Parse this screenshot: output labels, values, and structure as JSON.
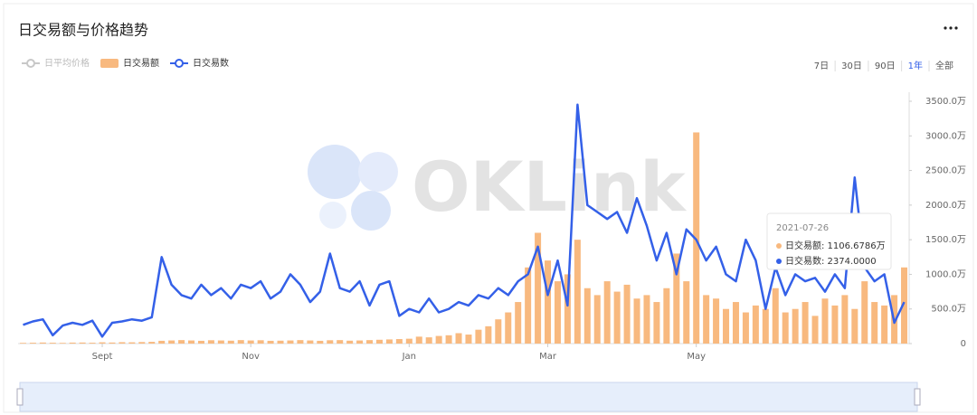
{
  "chart_data": {
    "type": "bar-line",
    "title": "日交易额与价格趋势",
    "watermark": "OKLink",
    "range_buttons": [
      "7日",
      "30日",
      "90日",
      "1年",
      "全部"
    ],
    "active_range": 3,
    "categories": [
      null,
      null,
      null,
      null,
      null,
      null,
      null,
      null,
      "Sept",
      null,
      null,
      null,
      null,
      null,
      null,
      null,
      null,
      null,
      null,
      null,
      null,
      null,
      null,
      "Nov",
      null,
      null,
      null,
      null,
      null,
      null,
      null,
      null,
      null,
      null,
      null,
      null,
      null,
      null,
      null,
      "Jan",
      null,
      null,
      null,
      null,
      null,
      null,
      null,
      null,
      null,
      null,
      null,
      null,
      null,
      "Mar",
      null,
      null,
      null,
      null,
      null,
      null,
      null,
      null,
      null,
      null,
      null,
      null,
      null,
      null,
      "May",
      null,
      null,
      null,
      null,
      null,
      null,
      null,
      null,
      null,
      null,
      null,
      null,
      null,
      null,
      null,
      null,
      null,
      null,
      null,
      null,
      null
    ],
    "series": [
      {
        "name": "日平均价格",
        "color": "#c8c8c8",
        "kind": "line",
        "visible": false,
        "values": [
          null,
          null,
          null,
          null,
          null,
          null,
          null,
          null,
          null,
          null,
          null,
          null,
          null,
          null,
          null,
          null,
          null,
          null,
          null,
          null,
          null,
          null,
          null,
          null,
          null,
          null,
          null,
          null,
          null,
          null,
          null,
          null,
          null,
          null,
          null,
          null,
          null,
          null,
          null,
          null,
          null,
          null,
          null,
          null,
          null,
          null,
          null,
          null,
          null,
          null,
          null,
          null,
          null,
          null,
          null,
          null,
          null,
          null,
          null,
          null,
          null,
          null,
          null,
          null,
          null,
          null,
          null,
          null,
          null,
          null,
          null,
          null,
          null,
          null,
          null,
          null,
          null,
          null,
          null,
          null,
          null,
          null,
          null,
          null,
          null,
          null,
          null,
          null,
          null,
          null
        ]
      },
      {
        "name": "日交易额",
        "color": "#f8b97f",
        "kind": "bar",
        "visible": true,
        "values": [
          10,
          12,
          15,
          12,
          10,
          14,
          15,
          12,
          18,
          15,
          20,
          18,
          22,
          25,
          40,
          45,
          50,
          45,
          40,
          48,
          45,
          42,
          50,
          45,
          48,
          40,
          42,
          45,
          50,
          45,
          40,
          48,
          50,
          42,
          45,
          50,
          55,
          60,
          65,
          70,
          100,
          90,
          110,
          120,
          150,
          130,
          200,
          250,
          350,
          450,
          600,
          1100,
          1600,
          1200,
          900,
          1000,
          1500,
          800,
          700,
          900,
          750,
          850,
          650,
          700,
          600,
          800,
          1300,
          900,
          3050,
          700,
          650,
          500,
          600,
          450,
          550,
          500,
          800,
          450,
          500,
          600,
          400,
          650,
          550,
          700,
          500,
          900,
          600,
          550,
          700,
          1100
        ]
      },
      {
        "name": "日交易数",
        "color": "#3460e8",
        "kind": "line",
        "visible": true,
        "values": [
          270,
          320,
          350,
          120,
          260,
          300,
          270,
          330,
          100,
          300,
          320,
          350,
          330,
          380,
          1250,
          850,
          700,
          650,
          850,
          700,
          800,
          650,
          850,
          800,
          900,
          650,
          750,
          1000,
          850,
          600,
          750,
          1300,
          800,
          750,
          900,
          550,
          850,
          900,
          400,
          500,
          450,
          650,
          450,
          500,
          600,
          550,
          700,
          650,
          800,
          700,
          900,
          1000,
          1400,
          700,
          1200,
          550,
          3450,
          2000,
          1900,
          1800,
          1900,
          1600,
          2100,
          1700,
          1200,
          1600,
          1000,
          1650,
          1500,
          1200,
          1400,
          1000,
          900,
          1500,
          1200,
          500,
          1100,
          700,
          1000,
          900,
          950,
          750,
          1000,
          800,
          2400,
          1100,
          900,
          1000,
          300,
          600
        ]
      }
    ],
    "ylim": [
      0,
      3500
    ],
    "yticks": [
      0,
      {
        "value": 500,
        "label": "500.0万"
      },
      {
        "value": 1000,
        "label": "1000.0万"
      },
      {
        "value": 1500,
        "label": "1500.0万"
      },
      {
        "value": 2000,
        "label": "2000.0万"
      },
      {
        "value": 2500,
        "label": "2500.0万"
      },
      {
        "value": 3000,
        "label": "3000.0万"
      },
      {
        "value": 3500,
        "label": "3500.0万"
      }
    ],
    "grid": false,
    "tooltip": {
      "date": "2021-07-26",
      "items": [
        "日交易额: 1106.6786万",
        "日交易数: 2374.0000"
      ]
    }
  }
}
